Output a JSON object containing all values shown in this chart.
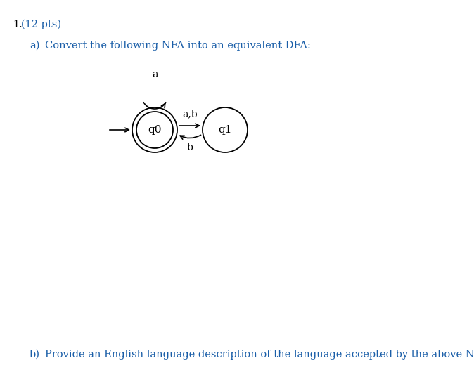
{
  "title_number": "1.",
  "title_pts": "(12 pts)",
  "part_a_label": "a)",
  "part_a_text": "Convert the following NFA into an equivalent DFA:",
  "part_b_label": "b)",
  "part_b_text": "Provide an English language description of the language accepted by the above NFA.",
  "state_q0": "q0",
  "state_q1": "q1",
  "self_loop_label": "a",
  "transition_label_top": "a,b",
  "transition_label_bot": "b",
  "text_color_black": "#000000",
  "text_color_blue": "#1a5ea8",
  "bg_color": "#ffffff",
  "title_fontsize": 10.5,
  "body_fontsize": 10.5,
  "state_fontsize": 11,
  "label_fontsize": 10
}
